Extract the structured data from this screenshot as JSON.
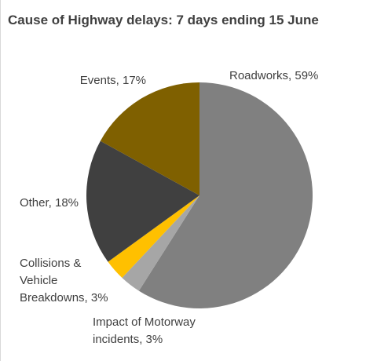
{
  "chart_data": {
    "type": "pie",
    "title": "Cause of Highway delays: 7 days ending 15 June",
    "categories": null,
    "values": [
      59,
      3,
      3,
      18,
      17
    ],
    "value_labels": [
      [
        "Roadworks, 59%"
      ],
      [
        "Impact of Motorway",
        "incidents, 3%"
      ],
      [
        "Collisions &",
        "Vehicle",
        "Breakdowns, 3%"
      ],
      [
        "Other, 18%"
      ],
      [
        "Events, 17%"
      ]
    ],
    "colors": [
      "#808080",
      "#a6a6a6",
      "#ffc000",
      "#404040",
      "#7f6000"
    ]
  }
}
